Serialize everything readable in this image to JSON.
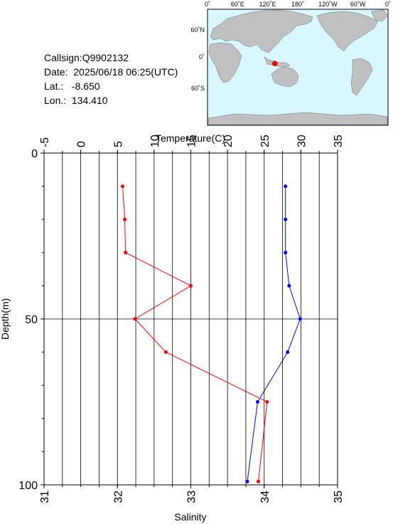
{
  "info": {
    "callsign": "Callsign:Q9902132",
    "date_label": "Date:",
    "date_value": "2025/06/18 06:25(UTC)",
    "lat_label": "Lat.:",
    "lat_value": "-8.650",
    "lon_label": "Lon.:",
    "lon_value": "134.410"
  },
  "map": {
    "top_labels": [
      "0˚",
      "60˚E",
      "120˚E",
      "180˚",
      "120˚W",
      "60˚W",
      "0˚"
    ],
    "lat_labels": [
      "60˚N",
      "0˚",
      "60˚S"
    ],
    "ocean_color": "#d9f7ff",
    "land_color": "#c0c0c0",
    "marker_color": "#ff0000",
    "marker_lon": 134.41,
    "marker_lat": -8.65
  },
  "chart_data": {
    "type": "line",
    "title": "",
    "ylabel": "Depth(m)",
    "ylim": [
      0,
      100
    ],
    "y_reversed": true,
    "y_ticks": [
      "0",
      "50",
      "100"
    ],
    "temperature_axis": {
      "label": "Temperature(C)",
      "range": [
        -5,
        35
      ],
      "ticks": [
        "-5",
        "0",
        "5",
        "10",
        "15",
        "20",
        "25",
        "30",
        "35"
      ]
    },
    "salinity_axis": {
      "label": "Salinity",
      "range": [
        31,
        35
      ],
      "ticks": [
        "31",
        "32",
        "33",
        "34",
        "35"
      ]
    },
    "grid": true,
    "series": [
      {
        "axis": "temperature",
        "color": "#0000ff",
        "points": [
          {
            "depth": 10,
            "value": 27.9
          },
          {
            "depth": 20,
            "value": 27.9
          },
          {
            "depth": 30,
            "value": 27.9
          },
          {
            "depth": 40,
            "value": 28.4
          },
          {
            "depth": 50,
            "value": 29.9
          },
          {
            "depth": 60,
            "value": 28.2
          },
          {
            "depth": 75,
            "value": 24.1
          },
          {
            "depth": 99,
            "value": 22.7
          }
        ]
      },
      {
        "axis": "salinity",
        "color": "#ff0000",
        "points": [
          {
            "depth": 10,
            "value": 32.07
          },
          {
            "depth": 20,
            "value": 32.1
          },
          {
            "depth": 30,
            "value": 32.11
          },
          {
            "depth": 40,
            "value": 33.0
          },
          {
            "depth": 50,
            "value": 32.24
          },
          {
            "depth": 60,
            "value": 32.66
          },
          {
            "depth": 75,
            "value": 34.04
          },
          {
            "depth": 99,
            "value": 33.92
          }
        ]
      }
    ]
  }
}
